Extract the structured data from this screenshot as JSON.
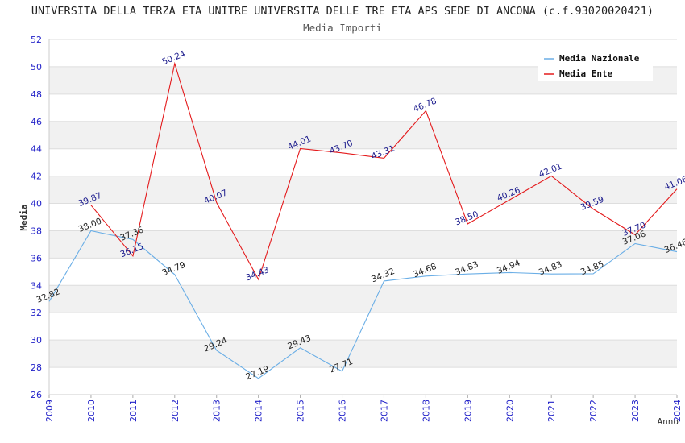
{
  "chart_data": {
    "type": "line",
    "title": "UNIVERSITA DELLA TERZA ETA UNITRE UNIVERSITA DELLE TRE ETA APS SEDE DI ANCONA (c.f.93020020421)",
    "subtitle": "Media Importi",
    "xlabel": "Anno",
    "ylabel": "Media",
    "x": [
      "2009",
      "2010",
      "2011",
      "2012",
      "2013",
      "2014",
      "2015",
      "2016",
      "2017",
      "2018",
      "2019",
      "2020",
      "2021",
      "2022",
      "2023",
      "2024"
    ],
    "ylim": [
      26,
      52
    ],
    "yticks": [
      26,
      28,
      30,
      32,
      34,
      36,
      38,
      40,
      42,
      44,
      46,
      48,
      50,
      52
    ],
    "grid": "horizontal alternating bands",
    "legend_position": "top-right",
    "series": [
      {
        "name": "Media Nazionale",
        "color": "#6aaee6",
        "values": [
          32.82,
          38.0,
          37.36,
          34.79,
          29.24,
          27.19,
          29.43,
          27.71,
          34.32,
          34.68,
          34.83,
          34.94,
          34.83,
          34.85,
          37.06,
          36.46
        ],
        "labels": [
          "32.82",
          "38.00",
          "37.36",
          "34.79",
          "29.24",
          "27.19",
          "29.43",
          "27.71",
          "34.32",
          "34.68",
          "34.83",
          "34.94",
          "34.83",
          "34.85",
          "37.06",
          "36.46"
        ]
      },
      {
        "name": "Media Ente",
        "color": "#e41a1c",
        "values": [
          null,
          39.87,
          36.15,
          50.24,
          40.07,
          34.43,
          44.01,
          43.7,
          43.31,
          46.78,
          38.5,
          40.26,
          42.01,
          39.59,
          37.7,
          41.06
        ],
        "labels": [
          null,
          "39.87",
          "36.15",
          "50.24",
          "40.07",
          "34.43",
          "44.01",
          "43.70",
          "43.31",
          "46.78",
          "38.50",
          "40.26",
          "42.01",
          "39.59",
          "37.70",
          "41.06"
        ]
      }
    ]
  }
}
